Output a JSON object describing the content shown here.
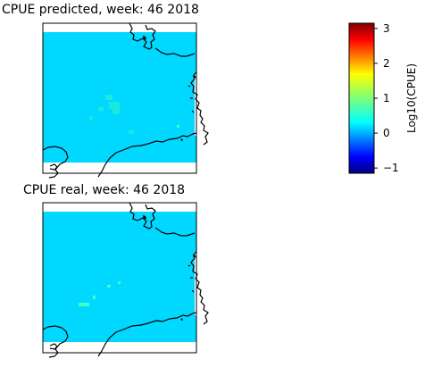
{
  "panels": [
    {
      "title": "CPUE predicted, week: 46 2018"
    },
    {
      "title": "CPUE real, week: 46 2018"
    }
  ],
  "colorbar": {
    "label": "Log10(CPUE)",
    "colormap": "jet",
    "range": [
      -1.15,
      3.15
    ],
    "ticks": [
      "3",
      "2",
      "1",
      "0",
      "−1"
    ],
    "tick_values": [
      3,
      2,
      1,
      0,
      -1
    ]
  },
  "colors": {
    "ocean_fill": "#00d8ff",
    "highlight_fill": "#40ffc0",
    "coastline": "#000000"
  }
}
